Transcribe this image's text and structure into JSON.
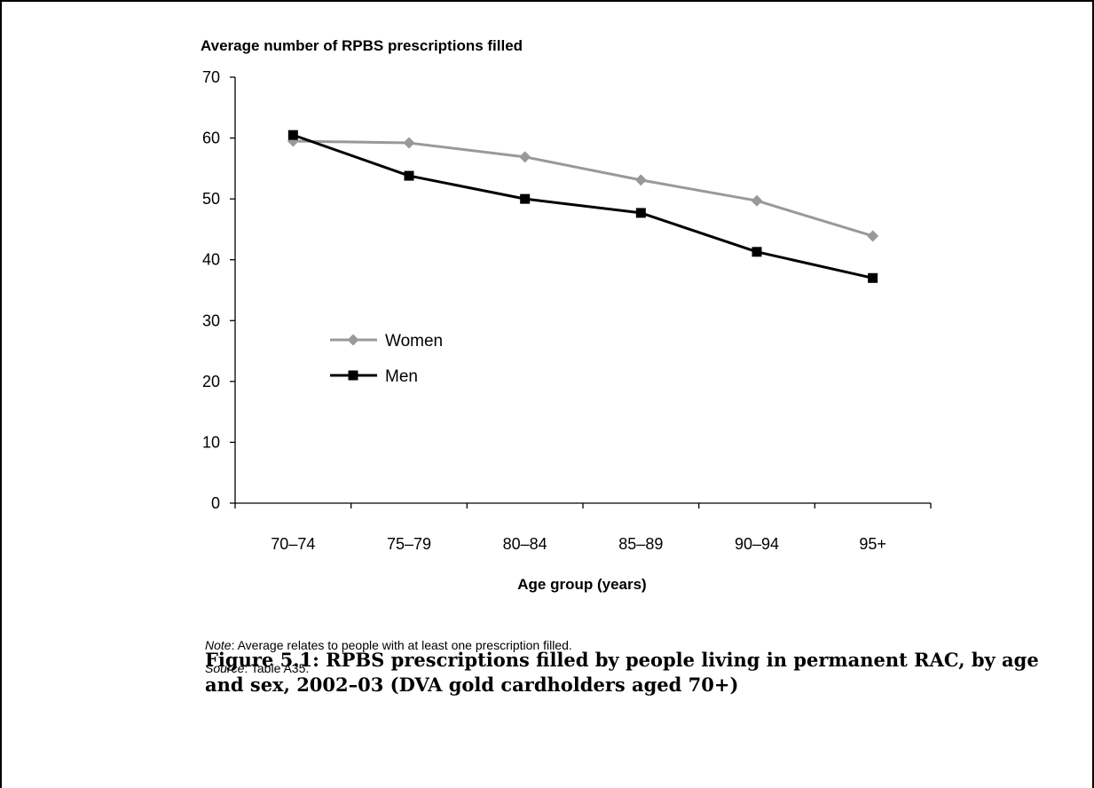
{
  "chart_data": {
    "type": "line",
    "title": "Average number of RPBS prescriptions filled",
    "xlabel": "Age group (years)",
    "ylabel": "Average number of RPBS prescriptions filled",
    "categories": [
      "70–74",
      "75–79",
      "80–84",
      "85–89",
      "90–94",
      "95+"
    ],
    "ylim": [
      0,
      70
    ],
    "yticks": [
      0,
      10,
      20,
      30,
      40,
      50,
      60,
      70
    ],
    "grid": false,
    "legend_position": "inside-left",
    "series": [
      {
        "name": "Women",
        "values": [
          59.5,
          59.2,
          56.9,
          53.1,
          49.7,
          43.9
        ],
        "color": "#999999",
        "marker": "diamond"
      },
      {
        "name": "Men",
        "values": [
          60.5,
          53.8,
          50.0,
          47.7,
          41.3,
          37.0
        ],
        "color": "#000000",
        "marker": "square"
      }
    ]
  },
  "notes": {
    "note_label": "Note",
    "note_text": ": Average relates to people with at least one prescription filled.",
    "source_label": "Source",
    "source_text": ": Table A35."
  },
  "caption": "Figure 5.1: RPBS prescriptions filled by people living in permanent RAC, by age and sex, 2002–03 (DVA gold cardholders aged 70+)"
}
